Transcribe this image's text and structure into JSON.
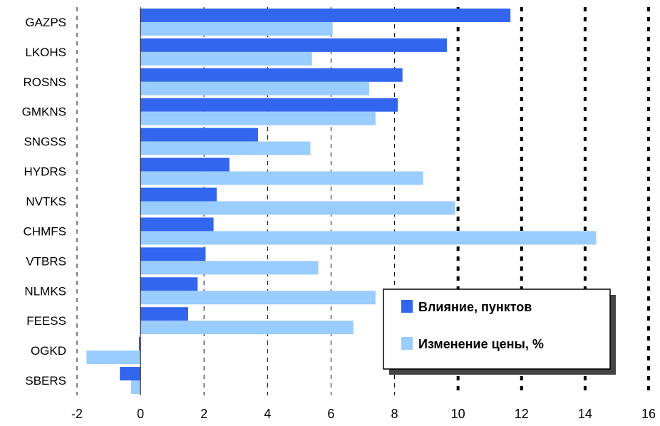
{
  "chart_data": {
    "type": "bar",
    "orientation": "horizontal",
    "categories": [
      "GAZPS",
      "LKOHS",
      "ROSNS",
      "GMKNS",
      "SNGSS",
      "HYDRS",
      "NVTKS",
      "CHMFS",
      "VTBRS",
      "NLMKS",
      "FEESS",
      "OGKD",
      "SBERS"
    ],
    "series": [
      {
        "name": "Влияние, пунктов",
        "color": "#3366ee",
        "values": [
          11.65,
          9.65,
          8.25,
          8.1,
          3.7,
          2.8,
          2.4,
          2.3,
          2.05,
          1.8,
          1.5,
          -0.05,
          -0.65
        ]
      },
      {
        "name": "Изменение цены, %",
        "color": "#99ccff",
        "values": [
          6.05,
          5.4,
          7.2,
          7.4,
          5.35,
          8.9,
          9.9,
          14.35,
          5.6,
          7.4,
          6.7,
          -1.7,
          -0.3
        ]
      }
    ],
    "xlim": [
      -2,
      16
    ],
    "xticks": [
      "-2",
      "0",
      "2",
      "4",
      "6",
      "8",
      "10",
      "12",
      "14",
      "16"
    ],
    "grid": "vertical dashed, bold dotted from 10 to 16",
    "legend_position": "bottom-right"
  }
}
